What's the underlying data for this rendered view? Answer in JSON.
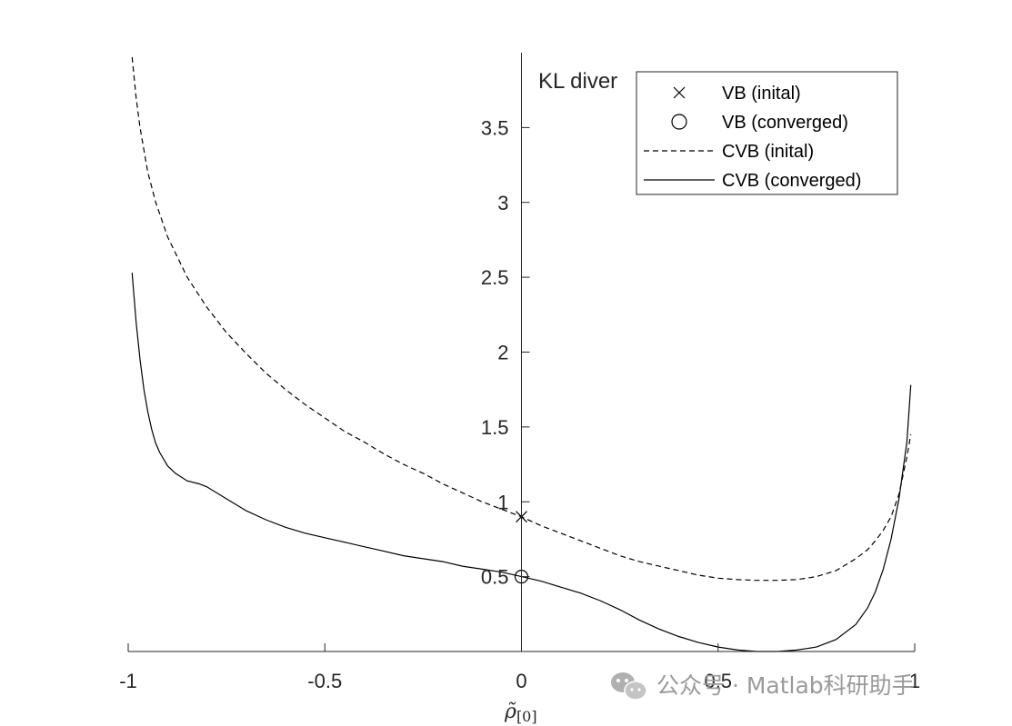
{
  "chart_data": {
    "type": "line",
    "title": "KL diver",
    "xlabel": "ρ̃",
    "xlabel_sub": "[0]",
    "xlim": [
      -1,
      1
    ],
    "ylim": [
      0,
      4
    ],
    "xticks": [
      -1,
      -0.5,
      0,
      0.5,
      1
    ],
    "xtick_labels": [
      "-1",
      "-0.5",
      "0",
      "0.5",
      "1"
    ],
    "yticks": [
      0.5,
      1,
      1.5,
      2,
      2.5,
      3,
      3.5
    ],
    "ytick_labels": [
      "0.5",
      "1",
      "1.5",
      "2",
      "2.5",
      "3",
      "3.5"
    ],
    "legend_position": "top-right",
    "series": [
      {
        "name": "VB (inital)",
        "style": "marker-x",
        "x": [
          0
        ],
        "y": [
          0.9
        ]
      },
      {
        "name": "VB (converged)",
        "style": "marker-o",
        "x": [
          0
        ],
        "y": [
          0.5
        ]
      },
      {
        "name": "CVB (inital)",
        "style": "dashed",
        "x": [
          -0.99,
          -0.98,
          -0.97,
          -0.95,
          -0.93,
          -0.9,
          -0.85,
          -0.8,
          -0.75,
          -0.7,
          -0.65,
          -0.6,
          -0.55,
          -0.5,
          -0.45,
          -0.4,
          -0.35,
          -0.3,
          -0.25,
          -0.2,
          -0.15,
          -0.1,
          -0.05,
          0,
          0.05,
          0.1,
          0.15,
          0.2,
          0.25,
          0.3,
          0.35,
          0.4,
          0.45,
          0.5,
          0.55,
          0.6,
          0.65,
          0.7,
          0.75,
          0.8,
          0.85,
          0.88,
          0.9,
          0.92,
          0.94,
          0.96,
          0.98,
          0.99
        ],
        "y": [
          3.97,
          3.7,
          3.5,
          3.2,
          3.0,
          2.77,
          2.5,
          2.3,
          2.13,
          1.99,
          1.86,
          1.75,
          1.65,
          1.56,
          1.47,
          1.4,
          1.32,
          1.25,
          1.19,
          1.12,
          1.06,
          1.0,
          0.95,
          0.9,
          0.84,
          0.79,
          0.74,
          0.69,
          0.64,
          0.6,
          0.57,
          0.54,
          0.51,
          0.49,
          0.48,
          0.475,
          0.475,
          0.48,
          0.5,
          0.54,
          0.62,
          0.68,
          0.74,
          0.81,
          0.9,
          1.05,
          1.3,
          1.45
        ]
      },
      {
        "name": "CVB (converged)",
        "style": "solid",
        "x": [
          -0.99,
          -0.98,
          -0.97,
          -0.96,
          -0.95,
          -0.94,
          -0.93,
          -0.92,
          -0.9,
          -0.88,
          -0.85,
          -0.82,
          -0.8,
          -0.75,
          -0.7,
          -0.65,
          -0.6,
          -0.55,
          -0.5,
          -0.45,
          -0.4,
          -0.35,
          -0.3,
          -0.25,
          -0.2,
          -0.15,
          -0.1,
          -0.05,
          0,
          0.05,
          0.1,
          0.15,
          0.2,
          0.25,
          0.3,
          0.35,
          0.4,
          0.45,
          0.5,
          0.55,
          0.6,
          0.65,
          0.7,
          0.75,
          0.8,
          0.85,
          0.88,
          0.9,
          0.92,
          0.94,
          0.96,
          0.98,
          0.99
        ],
        "y": [
          2.53,
          2.2,
          1.95,
          1.75,
          1.6,
          1.48,
          1.39,
          1.33,
          1.24,
          1.19,
          1.14,
          1.12,
          1.1,
          1.02,
          0.94,
          0.88,
          0.83,
          0.79,
          0.76,
          0.73,
          0.7,
          0.67,
          0.64,
          0.62,
          0.6,
          0.57,
          0.55,
          0.53,
          0.5,
          0.47,
          0.43,
          0.39,
          0.34,
          0.28,
          0.21,
          0.15,
          0.1,
          0.06,
          0.03,
          0.01,
          0.0,
          0.0,
          0.01,
          0.03,
          0.08,
          0.18,
          0.29,
          0.4,
          0.55,
          0.75,
          1.02,
          1.4,
          1.78
        ]
      }
    ]
  },
  "watermark": {
    "text": "公众号 · Matlab科研助手",
    "icon": "wechat-icon"
  }
}
